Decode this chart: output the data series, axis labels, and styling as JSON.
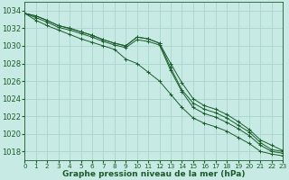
{
  "background_color": "#c8eae4",
  "grid_color": "#a8d4cc",
  "line_color": "#1a5c2a",
  "xlabel": "Graphe pression niveau de la mer (hPa)",
  "xlabel_fontsize": 6.5,
  "ytick_fontsize": 6,
  "xtick_fontsize": 5.2,
  "ylim": [
    1017,
    1035
  ],
  "xlim": [
    0,
    23
  ],
  "yticks": [
    1018,
    1020,
    1022,
    1024,
    1026,
    1028,
    1030,
    1032,
    1034
  ],
  "xticks": [
    0,
    1,
    2,
    3,
    4,
    5,
    6,
    7,
    8,
    9,
    10,
    11,
    12,
    13,
    14,
    15,
    16,
    17,
    18,
    19,
    20,
    21,
    22,
    23
  ],
  "series": [
    [
      1033.7,
      1033.4,
      1032.9,
      1032.3,
      1032.0,
      1031.6,
      1031.2,
      1030.7,
      1030.3,
      1030.0,
      1031.0,
      1030.8,
      1030.3,
      1028.0,
      1025.8,
      1024.0,
      1023.2,
      1022.8,
      1022.2,
      1021.4,
      1020.5,
      1019.3,
      1018.7,
      1018.1
    ],
    [
      1033.7,
      1033.4,
      1032.9,
      1032.3,
      1032.0,
      1031.6,
      1031.2,
      1030.7,
      1030.3,
      1030.0,
      1031.0,
      1030.8,
      1030.3,
      1027.5,
      1025.0,
      1023.5,
      1022.8,
      1022.4,
      1021.8,
      1021.0,
      1020.2,
      1019.0,
      1018.2,
      1018.0
    ],
    [
      1033.7,
      1033.2,
      1032.7,
      1032.1,
      1031.8,
      1031.4,
      1031.0,
      1030.5,
      1030.1,
      1029.8,
      1030.7,
      1030.5,
      1030.1,
      1027.2,
      1024.8,
      1023.0,
      1022.3,
      1021.9,
      1021.3,
      1020.6,
      1019.8,
      1018.7,
      1018.0,
      1017.8
    ],
    [
      1033.7,
      1032.9,
      1032.3,
      1031.8,
      1031.3,
      1030.8,
      1030.4,
      1030.0,
      1029.6,
      1028.5,
      1028.0,
      1027.0,
      1026.0,
      1024.5,
      1023.0,
      1021.8,
      1021.2,
      1020.8,
      1020.3,
      1019.6,
      1018.9,
      1018.0,
      1017.7,
      1017.5
    ]
  ]
}
